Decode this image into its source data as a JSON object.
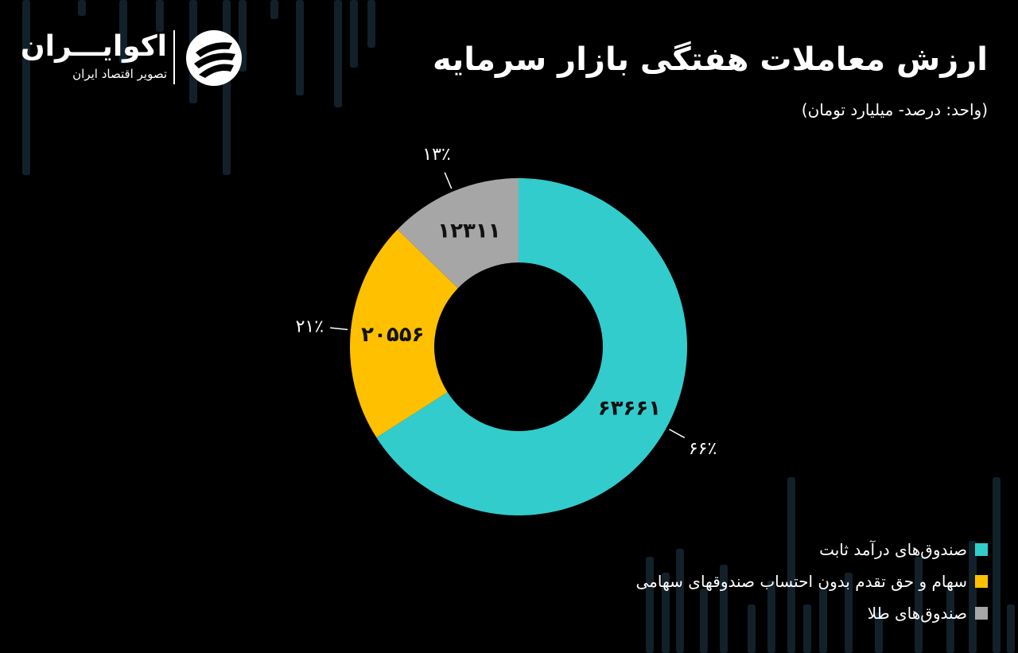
{
  "header": {
    "title": "ارزش معاملات هفتگی بازار سرمایه",
    "subtitle": "(واحد: درصد- میلیارد تومان)"
  },
  "logo": {
    "name": "اکوایـــران",
    "tagline": "تصویر اقتصاد ایران"
  },
  "colors": {
    "background": "#000000",
    "fixed_income": "#33cccc",
    "stocks": "#ffc000",
    "gold": "#a6a6a6"
  },
  "chart_data": {
    "type": "pie",
    "donut": true,
    "categories": [
      "صندوق‌های درآمد ثابت",
      "سهام و حق تقدم بدون احتساب صندوقهای سهامی",
      "صندوق‌های طلا"
    ],
    "values": [
      63661,
      20556,
      12311
    ],
    "value_labels": [
      "۶۳۶۶۱",
      "۲۰۵۵۶",
      "۱۲۳۱۱"
    ],
    "percent_labels": [
      "۶۶٪",
      "۲۱٪",
      "۱۳٪"
    ],
    "colors": [
      "#33cccc",
      "#ffc000",
      "#a6a6a6"
    ],
    "legend_position": "bottom-right"
  }
}
